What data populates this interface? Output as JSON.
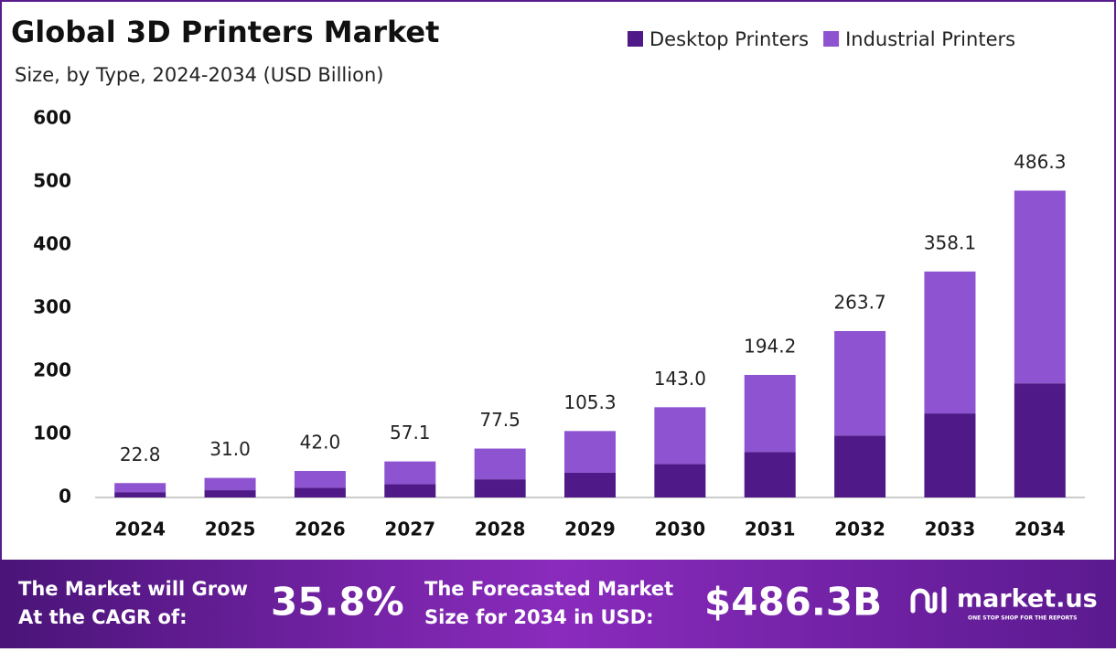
{
  "chart_data": {
    "type": "stacked-bar",
    "title": "Global 3D Printers Market",
    "subtitle": "Size, by Type, 2024-2034 (USD Billion)",
    "categories": [
      "2024",
      "2025",
      "2026",
      "2027",
      "2028",
      "2029",
      "2030",
      "2031",
      "2032",
      "2033",
      "2034"
    ],
    "series": [
      {
        "name": "Desktop Printers",
        "color": "#4f1a88",
        "values": [
          8.5,
          11.5,
          15.6,
          21.2,
          28.8,
          39.2,
          53.2,
          72.2,
          98.1,
          133.2,
          180.9
        ]
      },
      {
        "name": "Industrial Printers",
        "color": "#8e53d1",
        "values": [
          14.3,
          19.5,
          26.4,
          35.9,
          48.7,
          66.1,
          89.8,
          122.0,
          165.6,
          224.9,
          305.4
        ]
      }
    ],
    "totals": {
      "values": [
        22.8,
        31,
        42,
        57.1,
        77.5,
        105.3,
        143,
        194.2,
        263.7,
        358.1,
        486.3
      ],
      "value_labels": [
        "22.8",
        "31.0",
        "42.0",
        "57.1",
        "77.5",
        "105.3",
        "143.0",
        "194.2",
        "263.7",
        "358.1",
        "486.3"
      ]
    },
    "ylim": [
      0,
      600
    ],
    "yticks": [
      0,
      100,
      200,
      300,
      400,
      500,
      600
    ],
    "grid": false,
    "legend": "top-right"
  },
  "banner": {
    "cagr_text": [
      "The Market will Grow",
      "At the CAGR of:"
    ],
    "cagr": "35.8%",
    "forecast_text": [
      "The Forecasted Market",
      "Size for 2034 in USD:"
    ],
    "forecast": "$486.3B",
    "brand": "market.us",
    "tagline": "ONE STOP SHOP FOR THE REPORTS"
  }
}
